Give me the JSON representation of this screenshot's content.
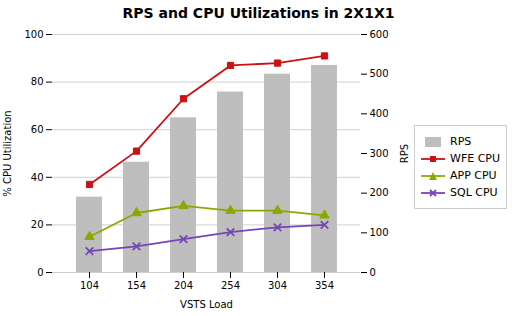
{
  "chart_data": {
    "type": "bar",
    "title": "RPS and CPU Utilizations in 2X1X1",
    "xlabel": "VSTS Load",
    "ylabel": "% CPU Utilization",
    "y2label": "RPS",
    "categories": [
      "104",
      "154",
      "204",
      "254",
      "304",
      "354"
    ],
    "series": [
      {
        "name": "RPS",
        "type": "bar",
        "axis": "y2",
        "color": "#bebebe",
        "values": [
          190,
          278,
          390,
          455,
          500,
          522
        ]
      },
      {
        "name": "WFE CPU",
        "type": "line",
        "color": "#cc1111",
        "marker": "square",
        "values": [
          37,
          51,
          73,
          87,
          88,
          91
        ]
      },
      {
        "name": "APP CPU",
        "type": "line",
        "color": "#88aa00",
        "marker": "triangle",
        "values": [
          15,
          25,
          28,
          26,
          26,
          24
        ]
      },
      {
        "name": "SQL CPU",
        "type": "line",
        "color": "#7744bb",
        "marker": "x",
        "values": [
          9,
          11,
          14,
          17,
          19,
          20
        ]
      }
    ],
    "ylim": [
      0,
      100
    ],
    "yticks": [
      0,
      20,
      40,
      60,
      80,
      100
    ],
    "y2lim": [
      0,
      600
    ],
    "y2ticks": [
      0,
      100,
      200,
      300,
      400,
      500,
      600
    ],
    "grid": true,
    "legend": "right"
  }
}
